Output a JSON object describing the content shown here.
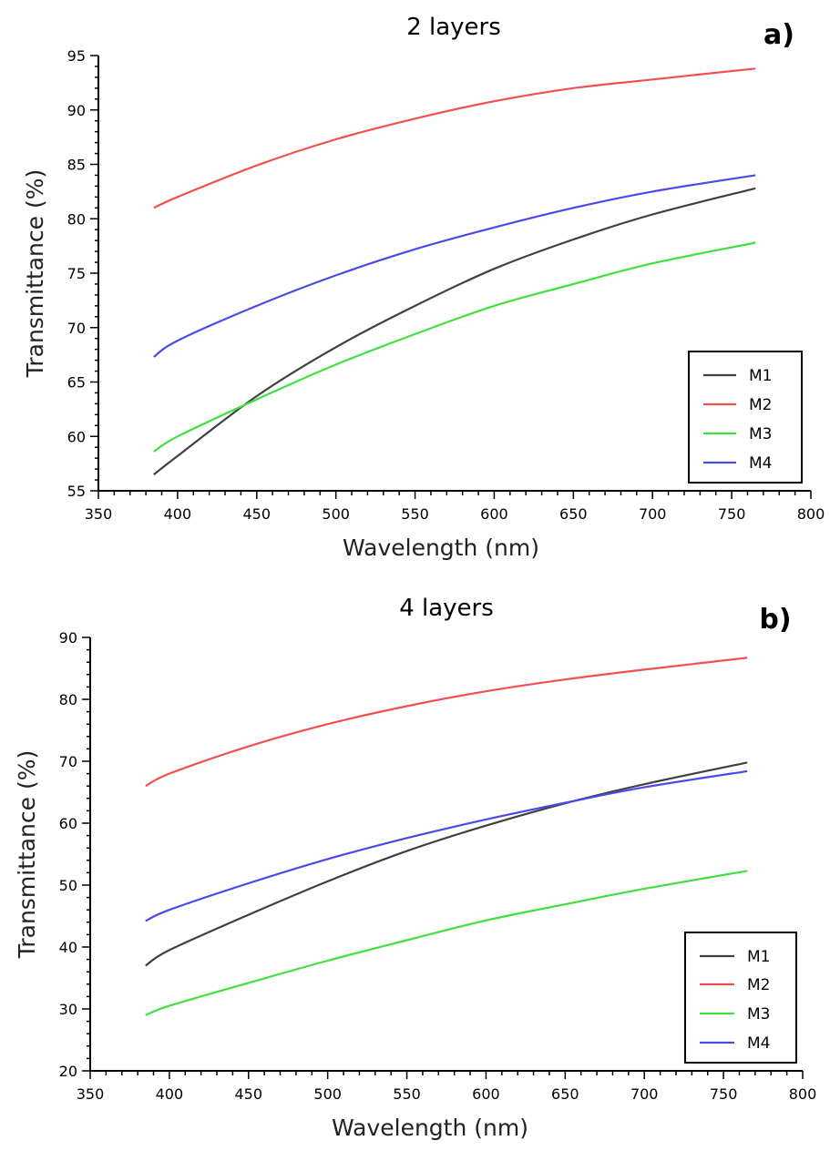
{
  "chart_data": [
    {
      "type": "line",
      "title": "2 layers",
      "panel_label": "a)",
      "xlabel": "Wavelength (nm)",
      "ylabel": "Transmittance (%)",
      "xlim": [
        350,
        800
      ],
      "ylim": [
        55,
        95
      ],
      "xticks": [
        350,
        400,
        450,
        500,
        550,
        600,
        650,
        700,
        750,
        800
      ],
      "yticks": [
        55,
        60,
        65,
        70,
        75,
        80,
        85,
        90,
        95
      ],
      "legend_position": "bottom-right",
      "x": [
        385,
        400,
        450,
        500,
        550,
        600,
        650,
        700,
        765
      ],
      "series": [
        {
          "name": "M1",
          "color": "#404040",
          "values": [
            56.5,
            58.2,
            63.7,
            68.2,
            72.0,
            75.4,
            78.1,
            80.4,
            82.8
          ]
        },
        {
          "name": "M2",
          "color": "#f05050",
          "values": [
            81.0,
            82.0,
            84.9,
            87.3,
            89.2,
            90.8,
            92.0,
            92.8,
            93.8
          ]
        },
        {
          "name": "M3",
          "color": "#40e040",
          "values": [
            58.6,
            60.0,
            63.4,
            66.6,
            69.4,
            72.0,
            74.0,
            75.9,
            77.8
          ]
        },
        {
          "name": "M4",
          "color": "#4a4ae8",
          "values": [
            67.3,
            68.8,
            72.0,
            74.8,
            77.2,
            79.2,
            81.0,
            82.5,
            84.0
          ]
        }
      ]
    },
    {
      "type": "line",
      "title": "4 layers",
      "panel_label": "b)",
      "xlabel": "Wavelength (nm)",
      "ylabel": "Transmittance (%)",
      "xlim": [
        350,
        800
      ],
      "ylim": [
        20,
        90
      ],
      "xticks": [
        350,
        400,
        450,
        500,
        550,
        600,
        650,
        700,
        750,
        800
      ],
      "yticks": [
        20,
        30,
        40,
        50,
        60,
        70,
        80,
        90
      ],
      "legend_position": "bottom-right",
      "x": [
        385,
        400,
        450,
        500,
        550,
        600,
        650,
        700,
        765
      ],
      "series": [
        {
          "name": "M1",
          "color": "#404040",
          "values": [
            37.0,
            39.5,
            45.2,
            50.6,
            55.5,
            59.6,
            63.2,
            66.3,
            69.8
          ]
        },
        {
          "name": "M2",
          "color": "#f05050",
          "values": [
            66.0,
            68.0,
            72.4,
            76.0,
            78.9,
            81.3,
            83.2,
            84.8,
            86.7
          ]
        },
        {
          "name": "M3",
          "color": "#40e040",
          "values": [
            29.0,
            30.5,
            34.2,
            37.8,
            41.1,
            44.3,
            46.9,
            49.4,
            52.3
          ]
        },
        {
          "name": "M4",
          "color": "#4a4ae8",
          "values": [
            44.2,
            46.0,
            50.3,
            54.2,
            57.6,
            60.6,
            63.3,
            65.8,
            68.4
          ]
        }
      ]
    }
  ]
}
